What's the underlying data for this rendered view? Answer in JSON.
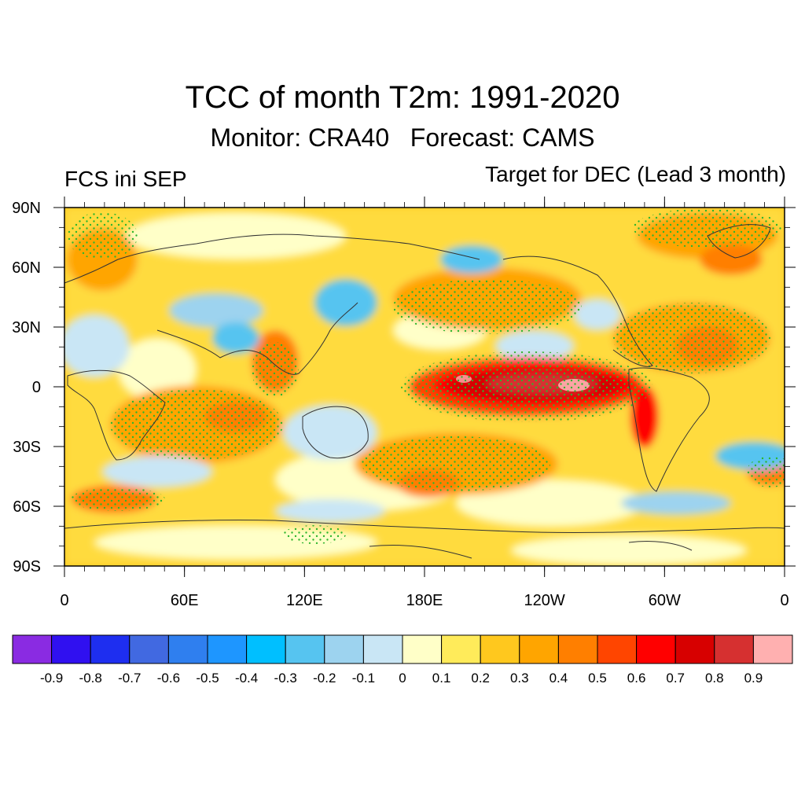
{
  "header": {
    "title": "TCC of month T2m: 1991-2020",
    "subtitle": "Monitor: CRA40   Forecast: CAMS",
    "left_label": "FCS ini SEP",
    "right_label": "Target for DEC (Lead 3 month)"
  },
  "map": {
    "lat_ticks": [
      "90N",
      "60N",
      "30N",
      "0",
      "30S",
      "60S",
      "90S"
    ],
    "lon_ticks": [
      "0",
      "60E",
      "120E",
      "180E",
      "120W",
      "60W",
      "0"
    ],
    "stipple_color": "#2db52d",
    "coastline_color": "#333333"
  },
  "colorbar": {
    "labels": [
      "-0.9",
      "-0.8",
      "-0.7",
      "-0.6",
      "-0.5",
      "-0.4",
      "-0.3",
      "-0.2",
      "-0.1",
      "0",
      "0.1",
      "0.2",
      "0.3",
      "0.4",
      "0.5",
      "0.6",
      "0.7",
      "0.8",
      "0.9"
    ],
    "colors": [
      "#8a2be2",
      "#3010f0",
      "#1e2ef0",
      "#4169e1",
      "#2f7fef",
      "#1e96ff",
      "#00bfff",
      "#56c4f0",
      "#9dd3ef",
      "#c9e6f5",
      "#ffffc8",
      "#ffeb5a",
      "#ffc81e",
      "#ffa500",
      "#ff7f00",
      "#ff4500",
      "#ff0000",
      "#d70000",
      "#d63030",
      "#ffb0b0"
    ]
  }
}
